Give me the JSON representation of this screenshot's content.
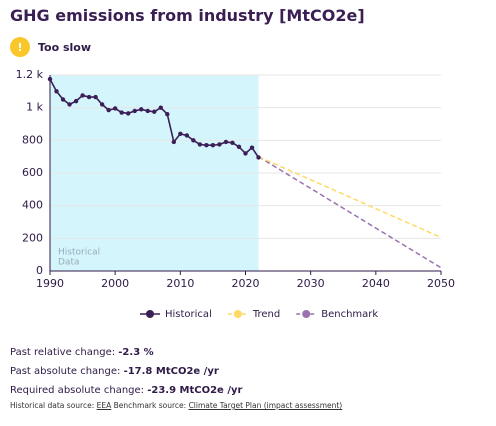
{
  "title": "GHG emissions from industry [MtCO2e]",
  "status": {
    "icon": "!",
    "text": "Too slow"
  },
  "chart_data": {
    "type": "line",
    "shade": {
      "x": [
        1990,
        2022
      ],
      "label": [
        "Historical",
        "Data"
      ],
      "color": "#d5f5fc"
    },
    "xlim": [
      1990,
      2050
    ],
    "xticks": [
      1990,
      2000,
      2010,
      2020,
      2030,
      2040,
      2050
    ],
    "ylim": [
      0,
      1200
    ],
    "yticks": [
      0,
      200,
      400,
      600,
      800,
      {
        "value": 1000,
        "label": "1 k"
      },
      {
        "value": 1200,
        "label": "1.2 k"
      }
    ],
    "grid": true,
    "series": [
      {
        "name": "Historical",
        "color": "#3b1f56",
        "dash": false,
        "markers": true,
        "x": [
          1990,
          1991,
          1992,
          1993,
          1994,
          1995,
          1996,
          1997,
          1998,
          1999,
          2000,
          2001,
          2002,
          2003,
          2004,
          2005,
          2006,
          2007,
          2008,
          2009,
          2010,
          2011,
          2012,
          2013,
          2014,
          2015,
          2016,
          2017,
          2018,
          2019,
          2020,
          2021,
          2022
        ],
        "values": [
          1175,
          1100,
          1050,
          1020,
          1040,
          1075,
          1065,
          1065,
          1020,
          985,
          995,
          970,
          965,
          980,
          990,
          980,
          975,
          1000,
          960,
          790,
          840,
          830,
          800,
          775,
          770,
          770,
          775,
          790,
          785,
          760,
          720,
          755,
          695
        ]
      },
      {
        "name": "Trend",
        "color": "#ffd966",
        "dash": true,
        "markers": false,
        "x": [
          2022,
          2050
        ],
        "values": [
          700,
          205
        ]
      },
      {
        "name": "Benchmark",
        "color": "#9b72b0",
        "dash": true,
        "markers": false,
        "x": [
          2022,
          2050
        ],
        "values": [
          700,
          20
        ]
      }
    ]
  },
  "stats": [
    {
      "label": "Past relative change:",
      "value": "-2.3 %"
    },
    {
      "label": "Past absolute change:",
      "value": "-17.8 MtCO2e /yr"
    },
    {
      "label": "Required absolute change:",
      "value": "-23.9 MtCO2e /yr"
    }
  ],
  "sources": {
    "label1": "Historical data source:",
    "link1": "EEA",
    "label2": "Benchmark source:",
    "link2": "Climate Target Plan (impact assessment)"
  }
}
